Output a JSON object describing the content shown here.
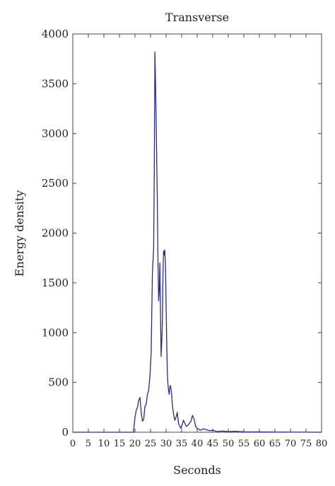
{
  "chart_data": {
    "type": "line",
    "title": "Transverse",
    "xlabel": "Seconds",
    "ylabel": "Energy density",
    "xlim": [
      0,
      80
    ],
    "ylim": [
      0,
      4000
    ],
    "x_ticks": [
      0,
      5,
      10,
      15,
      20,
      25,
      30,
      35,
      40,
      45,
      50,
      55,
      60,
      65,
      70,
      75,
      80
    ],
    "y_ticks": [
      0,
      500,
      1000,
      1500,
      2000,
      2500,
      3000,
      3500,
      4000
    ],
    "grid": false,
    "line_color": "#2a2a8c",
    "series": [
      {
        "x": [
          0,
          5,
          10,
          15,
          19.5,
          20,
          20.4,
          20.8,
          21.2,
          21.6,
          22.0,
          22.4,
          22.8,
          23.2,
          23.6,
          24.0,
          24.4,
          24.8,
          25.2,
          25.6,
          26.0,
          26.2,
          26.4,
          26.6,
          26.8,
          27.0,
          27.2,
          27.4,
          27.6,
          27.8,
          28.0,
          28.2,
          28.4,
          28.6,
          28.8,
          29.0,
          29.2,
          29.4,
          29.6,
          29.8,
          30.0,
          30.2,
          30.4,
          30.6,
          30.8,
          31.0,
          31.2,
          31.4,
          31.6,
          31.8,
          32.0,
          32.4,
          32.8,
          33.2,
          33.6,
          34.0,
          34.4,
          34.8,
          35.2,
          35.6,
          36.0,
          36.5,
          37.0,
          37.5,
          38.0,
          38.5,
          39.0,
          39.5,
          40.0,
          40.5,
          41.0,
          42.0,
          43.0,
          44.0,
          45.0,
          46.0,
          47.0,
          48.0,
          50.0,
          52.0,
          55.0,
          60.0,
          65.0,
          70.0,
          75.0,
          80.0
        ],
        "values": [
          0,
          0,
          0,
          0,
          0,
          150,
          220,
          250,
          320,
          350,
          200,
          110,
          130,
          260,
          280,
          380,
          420,
          560,
          800,
          1600,
          1850,
          2600,
          3820,
          3520,
          3150,
          2700,
          2300,
          1700,
          1320,
          1420,
          1700,
          1200,
          760,
          900,
          1100,
          1600,
          1820,
          1780,
          1830,
          1680,
          1300,
          900,
          600,
          480,
          420,
          380,
          450,
          470,
          430,
          380,
          280,
          180,
          120,
          150,
          200,
          90,
          60,
          40,
          80,
          120,
          90,
          60,
          70,
          90,
          110,
          170,
          130,
          60,
          40,
          30,
          20,
          35,
          25,
          15,
          20,
          10,
          8,
          12,
          6,
          10,
          4,
          3,
          2,
          2,
          1,
          0
        ]
      }
    ]
  }
}
